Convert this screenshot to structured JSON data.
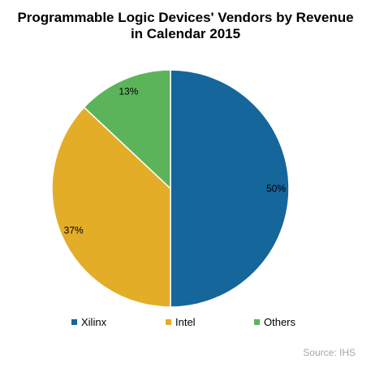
{
  "chart_data": {
    "type": "pie",
    "title_line1": "Programmable Logic Devices' Vendors by Revenue",
    "title_line2": "in Calendar 2015",
    "slices": [
      {
        "name": "Xilinx",
        "value": 50,
        "label": "50%",
        "color": "#15669a"
      },
      {
        "name": "Intel",
        "value": 37,
        "label": "37%",
        "color": "#e3ad28"
      },
      {
        "name": "Others",
        "value": 13,
        "label": "13%",
        "color": "#5cb45a"
      }
    ],
    "legend_position": "bottom",
    "source": "Source: IHS"
  }
}
